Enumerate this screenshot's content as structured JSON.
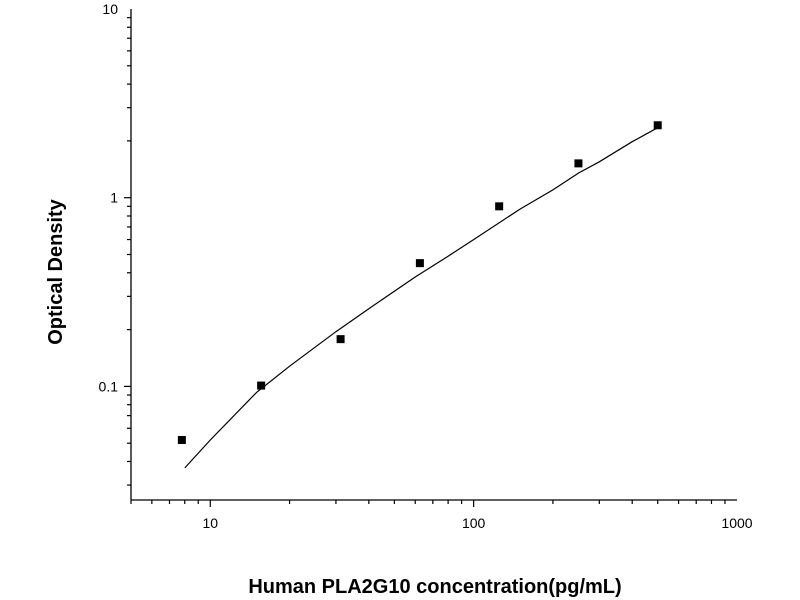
{
  "chart_data": {
    "type": "scatter",
    "xlabel": "Human PLA2G10 concentration(pg/mL)",
    "ylabel": "Optical Density",
    "xscale": "log",
    "yscale": "log",
    "xlim": [
      5,
      1000
    ],
    "ylim": [
      0.025,
      10
    ],
    "x_ticks": [
      {
        "value": 10,
        "label": "10"
      },
      {
        "value": 100,
        "label": "100"
      },
      {
        "value": 1000,
        "label": "1000"
      }
    ],
    "y_ticks": [
      {
        "value": 0.1,
        "label": "0.1"
      },
      {
        "value": 1,
        "label": "1"
      },
      {
        "value": 10,
        "label": "10"
      }
    ],
    "grid": false,
    "series": [
      {
        "type": "scatter",
        "marker": "square",
        "color": "#000000",
        "x": [
          7.8,
          15.6,
          31.25,
          62.5,
          125,
          250,
          500
        ],
        "y": [
          0.052,
          0.101,
          0.178,
          0.45,
          0.9,
          1.52,
          2.42
        ]
      },
      {
        "type": "line",
        "color": "#000000",
        "x": [
          8,
          10,
          15,
          20,
          30,
          40,
          60,
          80,
          100,
          150,
          200,
          250,
          300,
          400,
          500
        ],
        "y": [
          0.037,
          0.052,
          0.093,
          0.128,
          0.195,
          0.258,
          0.38,
          0.49,
          0.6,
          0.87,
          1.1,
          1.35,
          1.55,
          1.98,
          2.35
        ]
      }
    ]
  }
}
